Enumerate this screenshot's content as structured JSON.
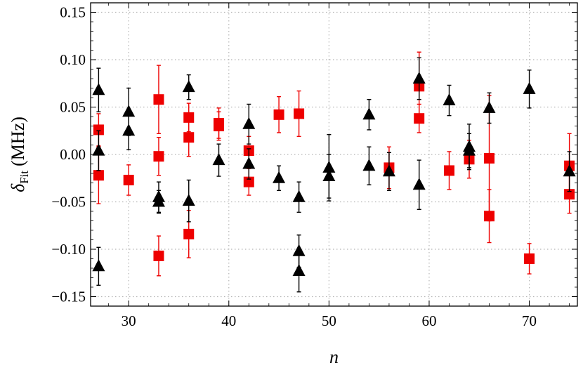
{
  "chart_data": {
    "type": "scatter",
    "title": "",
    "xlabel": "n",
    "ylabel": {
      "symbol": "δ",
      "subscript": "Fit",
      "unit": "(MHz)"
    },
    "xlim": [
      26.2,
      74.8
    ],
    "ylim": [
      -0.16,
      0.16
    ],
    "xticks": [
      30,
      40,
      50,
      60,
      70
    ],
    "yticks": [
      0.15,
      0.1,
      0.05,
      0.0,
      -0.05,
      -0.1,
      -0.15
    ],
    "ytick_labels": [
      "0.15",
      "0.10",
      "0.05",
      "0.00",
      "−0.05",
      "−0.10",
      "−0.15"
    ],
    "grid": true,
    "legend": "none",
    "series": [
      {
        "marker": "square",
        "color": "#ee0000",
        "points": [
          {
            "x": 27,
            "y": 0.026,
            "err": 0.017
          },
          {
            "x": 27,
            "y": -0.022,
            "err": 0.03
          },
          {
            "x": 30,
            "y": -0.027,
            "err": 0.016
          },
          {
            "x": 33,
            "y": 0.058,
            "err": 0.036
          },
          {
            "x": 33,
            "y": -0.002,
            "err": 0.02
          },
          {
            "x": 33,
            "y": -0.107,
            "err": 0.021
          },
          {
            "x": 36,
            "y": 0.039,
            "err": 0.015
          },
          {
            "x": 36,
            "y": 0.018,
            "err": 0.02
          },
          {
            "x": 36,
            "y": -0.084,
            "err": 0.025
          },
          {
            "x": 39,
            "y": 0.033,
            "err": 0.016
          },
          {
            "x": 39,
            "y": 0.03,
            "err": 0.015
          },
          {
            "x": 42,
            "y": 0.004,
            "err": 0.015
          },
          {
            "x": 42,
            "y": -0.029,
            "err": 0.014
          },
          {
            "x": 45,
            "y": 0.042,
            "err": 0.019
          },
          {
            "x": 47,
            "y": 0.043,
            "err": 0.024
          },
          {
            "x": 56,
            "y": -0.014,
            "err": 0.022
          },
          {
            "x": 59,
            "y": 0.072,
            "err": 0.036
          },
          {
            "x": 59,
            "y": 0.038,
            "err": 0.015
          },
          {
            "x": 62,
            "y": -0.017,
            "err": 0.02
          },
          {
            "x": 64,
            "y": -0.005,
            "err": 0.02
          },
          {
            "x": 66,
            "y": -0.004,
            "err": 0.066
          },
          {
            "x": 66,
            "y": -0.065,
            "err": 0.028
          },
          {
            "x": 70,
            "y": -0.11,
            "err": 0.016
          },
          {
            "x": 74,
            "y": -0.012,
            "err": 0.034
          },
          {
            "x": 74,
            "y": -0.042,
            "err": 0.02
          }
        ]
      },
      {
        "marker": "triangle",
        "color": "#000000",
        "points": [
          {
            "x": 27,
            "y": 0.068,
            "err": 0.023
          },
          {
            "x": 27,
            "y": 0.004,
            "err": 0.021
          },
          {
            "x": 27,
            "y": -0.118,
            "err": 0.02
          },
          {
            "x": 30,
            "y": 0.045,
            "err": 0.025
          },
          {
            "x": 30,
            "y": 0.025,
            "err": 0.02
          },
          {
            "x": 33,
            "y": -0.045,
            "err": 0.016
          },
          {
            "x": 33,
            "y": -0.05,
            "err": 0.012
          },
          {
            "x": 36,
            "y": 0.071,
            "err": 0.013
          },
          {
            "x": 36,
            "y": -0.049,
            "err": 0.022
          },
          {
            "x": 39,
            "y": -0.006,
            "err": 0.017
          },
          {
            "x": 42,
            "y": 0.032,
            "err": 0.021
          },
          {
            "x": 42,
            "y": -0.01,
            "err": 0.016
          },
          {
            "x": 45,
            "y": -0.025,
            "err": 0.013
          },
          {
            "x": 47,
            "y": -0.045,
            "err": 0.016
          },
          {
            "x": 47,
            "y": -0.102,
            "err": 0.017
          },
          {
            "x": 47,
            "y": -0.123,
            "err": 0.022
          },
          {
            "x": 50,
            "y": -0.014,
            "err": 0.035
          },
          {
            "x": 50,
            "y": -0.023,
            "err": 0.023
          },
          {
            "x": 54,
            "y": 0.042,
            "err": 0.016
          },
          {
            "x": 54,
            "y": -0.012,
            "err": 0.02
          },
          {
            "x": 56,
            "y": -0.018,
            "err": 0.02
          },
          {
            "x": 59,
            "y": 0.08,
            "err": 0.022
          },
          {
            "x": 59,
            "y": -0.032,
            "err": 0.026
          },
          {
            "x": 62,
            "y": 0.057,
            "err": 0.016
          },
          {
            "x": 64,
            "y": 0.008,
            "err": 0.024
          },
          {
            "x": 64,
            "y": 0.004,
            "err": 0.018
          },
          {
            "x": 66,
            "y": 0.049,
            "err": 0.016
          },
          {
            "x": 70,
            "y": 0.069,
            "err": 0.02
          },
          {
            "x": 74,
            "y": -0.018,
            "err": 0.021
          }
        ]
      }
    ]
  }
}
